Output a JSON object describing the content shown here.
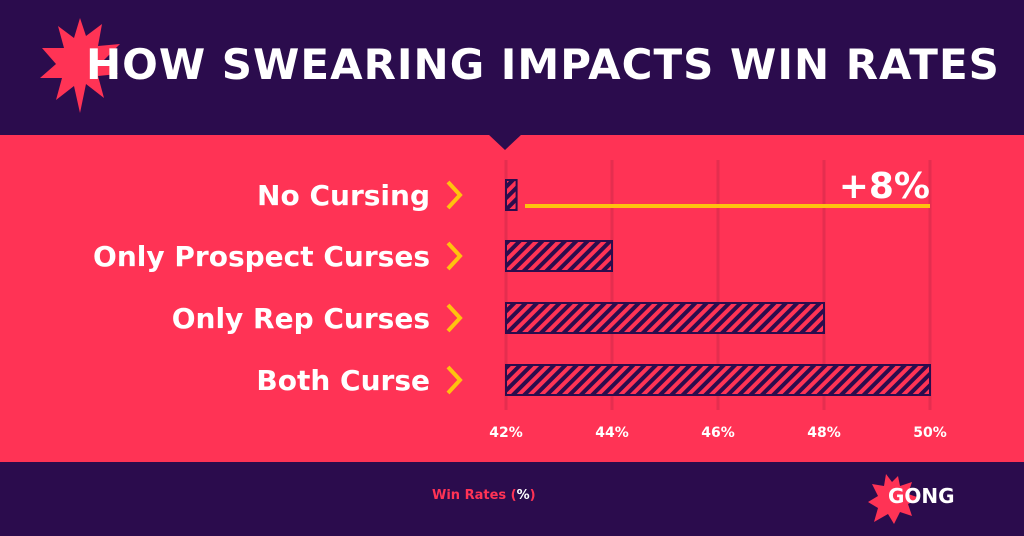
{
  "header": {
    "title": "HOW SWEARING IMPACTS WIN RATES"
  },
  "colors": {
    "pink": "#ff3355",
    "purple": "#2b0c4d",
    "yellow": "#ffc20e"
  },
  "chart_data": {
    "type": "bar",
    "orientation": "horizontal",
    "title": "HOW SWEARING IMPACTS WIN RATES",
    "categories": [
      "No Cursing",
      "Only Prospect Curses",
      "Only Rep Curses",
      "Both Curse"
    ],
    "values": [
      42.2,
      44,
      48,
      50
    ],
    "xlabel": "Win Rates (%)",
    "xlabel_parts": [
      "Win Rates (",
      "%",
      ")"
    ],
    "xlim": [
      42,
      50
    ],
    "ticks": [
      42,
      44,
      46,
      48,
      50
    ],
    "tick_labels": [
      "42%",
      "44%",
      "46%",
      "48%",
      "50%"
    ],
    "grid": true,
    "annotation": "+8%"
  },
  "footer": {
    "logo": "GONG"
  }
}
